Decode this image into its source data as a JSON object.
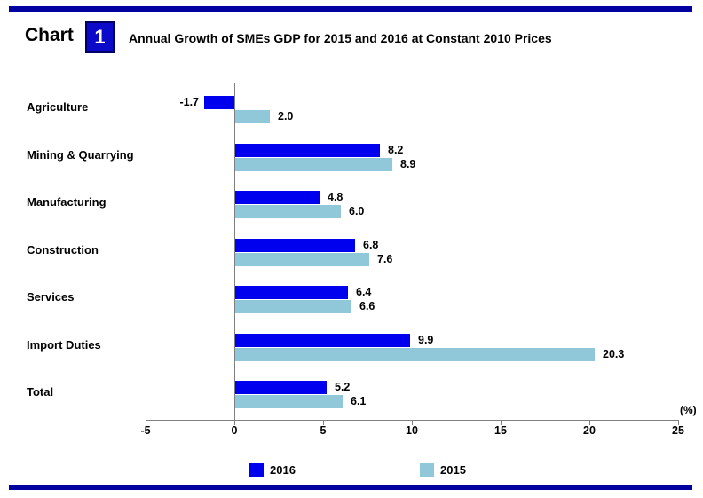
{
  "header": {
    "chart_word": "Chart",
    "chart_number": "1",
    "title": "Annual Growth of SMEs GDP for 2015 and 2016 at Constant 2010 Prices"
  },
  "colors": {
    "border_rule": "#0000A0",
    "number_box": "#0A0AC8",
    "axis": "#808080",
    "series_2016": "#0000EE",
    "series_2015": "#90C8DA"
  },
  "chart_data": {
    "type": "bar",
    "orientation": "horizontal",
    "title": "Annual Growth of SMEs GDP for 2015 and 2016 at Constant 2010 Prices",
    "categories": [
      "Agriculture",
      "Mining & Quarrying",
      "Manufacturing",
      "Construction",
      "Services",
      "Import Duties",
      "Total"
    ],
    "series": [
      {
        "name": "2016",
        "color": "#0000EE",
        "values": [
          -1.7,
          8.2,
          4.8,
          6.8,
          6.4,
          9.9,
          5.2
        ],
        "labels": [
          "-1.7",
          "8.2",
          "4.8",
          "6.8",
          "6.4",
          "9.9",
          "5.2"
        ]
      },
      {
        "name": "2015",
        "color": "#90C8DA",
        "values": [
          2.0,
          8.9,
          6.0,
          7.6,
          6.6,
          20.3,
          6.1
        ],
        "labels": [
          "2.0",
          "8.9",
          "6.0",
          "7.6",
          "6.6",
          "20.3",
          "6.1"
        ]
      }
    ],
    "x_ticks": [
      "-5",
      "0",
      "5",
      "10",
      "15",
      "20",
      "25"
    ],
    "x_tick_values": [
      -5,
      0,
      5,
      10,
      15,
      20,
      25
    ],
    "xlim": [
      -5,
      25
    ],
    "axis_unit_label": "(%)",
    "grid": false,
    "legend_position": "bottom",
    "legend": [
      "2016",
      "2015"
    ]
  }
}
